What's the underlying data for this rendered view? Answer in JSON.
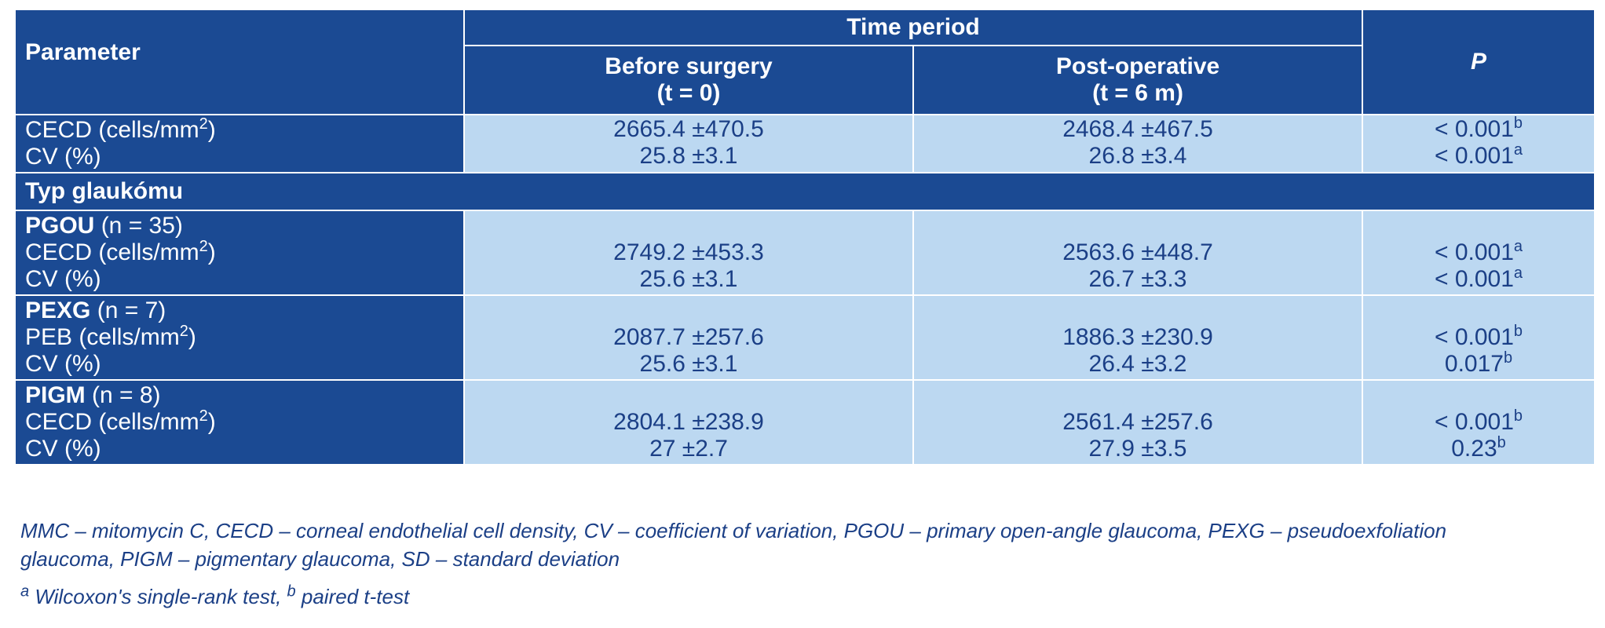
{
  "header": {
    "parameter": "Parameter",
    "time_period": "Time period",
    "before": [
      "Before surgery",
      "(t = 0)"
    ],
    "post": [
      "Post-operative",
      "(t = 6 m)"
    ],
    "p": "P"
  },
  "overall": {
    "labels": [
      "CECD (cells/mm",
      "CV (%)"
    ],
    "label_sup": "2",
    "before": [
      "2665.4 ±470.5",
      "25.8 ±3.1"
    ],
    "post": [
      "2468.4 ±467.5",
      "26.8 ±3.4"
    ],
    "p": [
      "< 0.001",
      "< 0.001"
    ],
    "p_sup": [
      "b",
      "a"
    ]
  },
  "section_title": "Typ glaukómu",
  "groups": [
    {
      "name": "PGOU",
      "n": " (n = 35)",
      "labels": [
        "CECD (cells/mm",
        "CV (%)"
      ],
      "label_sup": "2",
      "before": [
        "2749.2 ±453.3",
        "25.6 ±3.1"
      ],
      "post": [
        "2563.6 ±448.7",
        "26.7 ±3.3"
      ],
      "p": [
        "< 0.001",
        "< 0.001"
      ],
      "p_sup": [
        "a",
        "a"
      ]
    },
    {
      "name": "PEXG",
      "n": " (n = 7)",
      "labels": [
        "PEB (cells/mm",
        "CV (%)"
      ],
      "label_sup": "2",
      "before": [
        "2087.7 ±257.6",
        "25.6 ±3.1"
      ],
      "post": [
        "1886.3 ±230.9",
        "26.4 ±3.2"
      ],
      "p": [
        "< 0.001",
        "0.017"
      ],
      "p_sup": [
        "b",
        "b"
      ]
    },
    {
      "name": "PIGM",
      "n": " (n = 8)",
      "labels": [
        "CECD (cells/mm",
        "CV (%)"
      ],
      "label_sup": "2",
      "before": [
        "2804.1 ±238.9",
        "27 ±2.7"
      ],
      "post": [
        "2561.4 ±257.6",
        "27.9 ±3.5"
      ],
      "p": [
        "< 0.001",
        "0.23"
      ],
      "p_sup": [
        "b",
        "b"
      ]
    }
  ],
  "notes": {
    "abbreviations_line1": "MMC – mitomycin C, CECD – corneal endothelial cell density, CV – coefficient of variation, PGOU – primary open-angle glaucoma, PEXG – pseudoexfoliation",
    "abbreviations_line2": "glaucoma, PIGM – pigmentary glaucoma, SD – standard deviation",
    "sup_a": "a",
    "footnote_a": " Wilcoxon's single-rank test, ",
    "sup_b": "b",
    "footnote_b": " paired t-test"
  },
  "colors": {
    "header_bg": "#1b4a93",
    "cell_bg": "#bcd8f1",
    "text_blue": "#1b3f86"
  }
}
